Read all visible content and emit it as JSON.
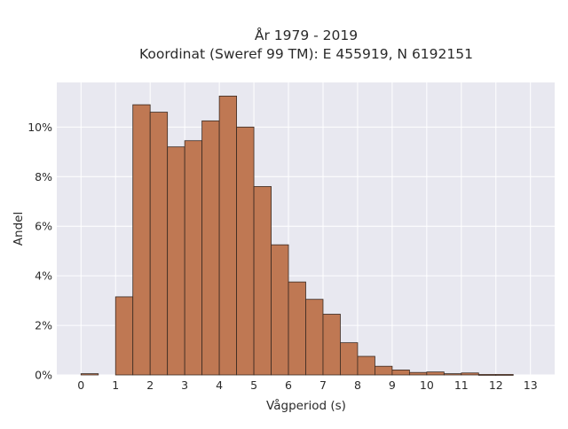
{
  "chart_data": {
    "type": "bar",
    "title": "År 1979 - 2019",
    "subtitle": "Koordinat (Sweref 99 TM): E 455919, N 6192151",
    "xlabel": "Vågperiod (s)",
    "ylabel": "Andel",
    "bin_width": 0.5,
    "bins": [
      {
        "x0": 0.0,
        "x1": 0.5,
        "value": 0.05
      },
      {
        "x0": 0.5,
        "x1": 1.0,
        "value": 0.0
      },
      {
        "x0": 1.0,
        "x1": 1.5,
        "value": 3.15
      },
      {
        "x0": 1.5,
        "x1": 2.0,
        "value": 10.9
      },
      {
        "x0": 2.0,
        "x1": 2.5,
        "value": 10.6
      },
      {
        "x0": 2.5,
        "x1": 3.0,
        "value": 9.2
      },
      {
        "x0": 3.0,
        "x1": 3.5,
        "value": 9.45
      },
      {
        "x0": 3.5,
        "x1": 4.0,
        "value": 10.25
      },
      {
        "x0": 4.0,
        "x1": 4.5,
        "value": 11.25
      },
      {
        "x0": 4.5,
        "x1": 5.0,
        "value": 10.0
      },
      {
        "x0": 5.0,
        "x1": 5.5,
        "value": 7.6
      },
      {
        "x0": 5.5,
        "x1": 6.0,
        "value": 5.25
      },
      {
        "x0": 6.0,
        "x1": 6.5,
        "value": 3.75
      },
      {
        "x0": 6.5,
        "x1": 7.0,
        "value": 3.05
      },
      {
        "x0": 7.0,
        "x1": 7.5,
        "value": 2.45
      },
      {
        "x0": 7.5,
        "x1": 8.0,
        "value": 1.3
      },
      {
        "x0": 8.0,
        "x1": 8.5,
        "value": 0.75
      },
      {
        "x0": 8.5,
        "x1": 9.0,
        "value": 0.35
      },
      {
        "x0": 9.0,
        "x1": 9.5,
        "value": 0.2
      },
      {
        "x0": 9.5,
        "x1": 10.0,
        "value": 0.1
      },
      {
        "x0": 10.0,
        "x1": 10.5,
        "value": 0.12
      },
      {
        "x0": 10.5,
        "x1": 11.0,
        "value": 0.05
      },
      {
        "x0": 11.0,
        "x1": 11.5,
        "value": 0.08
      },
      {
        "x0": 11.5,
        "x1": 12.0,
        "value": 0.02
      },
      {
        "x0": 12.0,
        "x1": 12.5,
        "value": 0.02
      },
      {
        "x0": 12.5,
        "x1": 13.0,
        "value": 0.0
      }
    ],
    "xlim": [
      -0.7,
      13.7
    ],
    "ylim": [
      0,
      11.8
    ],
    "x_ticks": [
      0,
      1,
      2,
      3,
      4,
      5,
      6,
      7,
      8,
      9,
      10,
      11,
      12,
      13
    ],
    "x_tick_labels": [
      "0",
      "1",
      "2",
      "3",
      "4",
      "5",
      "6",
      "7",
      "8",
      "9",
      "10",
      "11",
      "12",
      "13"
    ],
    "y_ticks": [
      0,
      2,
      4,
      6,
      8,
      10
    ],
    "y_tick_labels": [
      "0%",
      "2%",
      "4%",
      "6%",
      "8%",
      "10%"
    ],
    "grid": true,
    "legend": "none",
    "colors": {
      "bar_fill": "#bf7853",
      "bar_edge": "#3a2a22",
      "plot_background": "#e8e8f0",
      "grid": "#ffffff"
    }
  }
}
